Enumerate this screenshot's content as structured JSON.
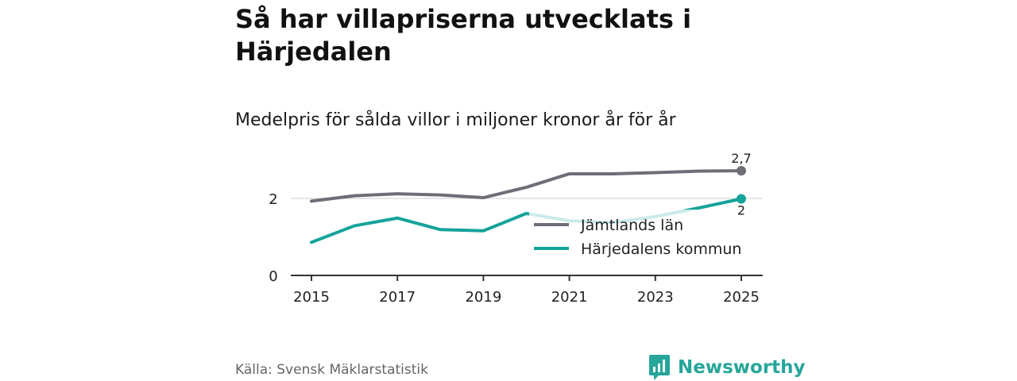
{
  "title": "Så har villapriserna utvecklats i Härjedalen",
  "subtitle": "Medelpris för sålda villor i miljoner kronor år för år",
  "source": "Källa: Svensk Mäklarstatistik",
  "brand": "Newsworthy",
  "colors": {
    "jamtland": "#6f6e76",
    "harjedalen": "#15a39a",
    "axis": "#333333",
    "grid": "#d6d6d6",
    "brand": "#26a69a"
  },
  "chart_data": {
    "type": "line",
    "title": "Så har villapriserna utvecklats i Härjedalen",
    "subtitle": "Medelpris för sålda villor i miljoner kronor år för år",
    "xlabel": "",
    "ylabel": "",
    "x": [
      2015,
      2016,
      2017,
      2018,
      2019,
      2020,
      2021,
      2022,
      2023,
      2024,
      2025
    ],
    "xticks": [
      "2015",
      "2017",
      "2019",
      "2021",
      "2023",
      "2025"
    ],
    "yticks": [
      "0",
      "2"
    ],
    "ylim": [
      0,
      2.9
    ],
    "grid": true,
    "legend_position": "bottom-right",
    "series": [
      {
        "name": "Jämtlands län",
        "values": [
          1.93,
          2.07,
          2.12,
          2.09,
          2.02,
          2.29,
          2.64,
          2.64,
          2.67,
          2.71,
          2.72
        ],
        "end_label": "2,7"
      },
      {
        "name": "Härjedalens kommun",
        "values": [
          0.86,
          1.29,
          1.49,
          1.19,
          1.16,
          1.61,
          1.42,
          1.37,
          1.53,
          1.75,
          1.99
        ],
        "end_label": "2"
      }
    ]
  }
}
